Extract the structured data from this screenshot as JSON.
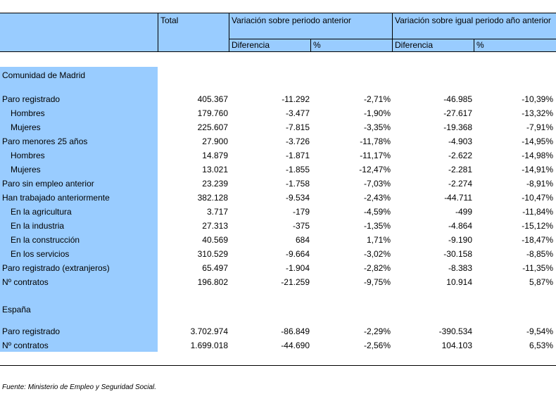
{
  "header": {
    "total": "Total",
    "var_anterior": "Variación sobre periodo anterior",
    "var_igual": "Variación sobre igual periodo año anterior",
    "diferencia": "Diferencia",
    "pct": "%"
  },
  "sections": [
    {
      "title": "Comunidad de Madrid",
      "rows": [
        {
          "label": "Paro registrado",
          "indent": false,
          "total": "405.367",
          "d1": "-11.292",
          "p1": "-2,71%",
          "d2": "-46.985",
          "p2": "-10,39%"
        },
        {
          "label": "Hombres",
          "indent": true,
          "total": "179.760",
          "d1": "-3.477",
          "p1": "-1,90%",
          "d2": "-27.617",
          "p2": "-13,32%"
        },
        {
          "label": "Mujeres",
          "indent": true,
          "total": "225.607",
          "d1": "-7.815",
          "p1": "-3,35%",
          "d2": "-19.368",
          "p2": "-7,91%"
        },
        {
          "label": "Paro menores 25 años",
          "indent": false,
          "total": "27.900",
          "d1": "-3.726",
          "p1": "-11,78%",
          "d2": "-4.903",
          "p2": "-14,95%"
        },
        {
          "label": "Hombres",
          "indent": true,
          "total": "14.879",
          "d1": "-1.871",
          "p1": "-11,17%",
          "d2": "-2.622",
          "p2": "-14,98%"
        },
        {
          "label": "Mujeres",
          "indent": true,
          "total": "13.021",
          "d1": "-1.855",
          "p1": "-12,47%",
          "d2": "-2.281",
          "p2": "-14,91%"
        },
        {
          "label": "Paro sin empleo anterior",
          "indent": false,
          "total": "23.239",
          "d1": "-1.758",
          "p1": "-7,03%",
          "d2": "-2.274",
          "p2": "-8,91%"
        },
        {
          "label": "Han trabajado anteriormente",
          "indent": false,
          "total": "382.128",
          "d1": "-9.534",
          "p1": "-2,43%",
          "d2": "-44.711",
          "p2": "-10,47%"
        },
        {
          "label": "En la agricultura",
          "indent": true,
          "total": "3.717",
          "d1": "-179",
          "p1": "-4,59%",
          "d2": "-499",
          "p2": "-11,84%"
        },
        {
          "label": "En la industria",
          "indent": true,
          "total": "27.313",
          "d1": "-375",
          "p1": "-1,35%",
          "d2": "-4.864",
          "p2": "-15,12%"
        },
        {
          "label": "En la construcción",
          "indent": true,
          "total": "40.569",
          "d1": "684",
          "p1": "1,71%",
          "d2": "-9.190",
          "p2": "-18,47%"
        },
        {
          "label": "En los servicios",
          "indent": true,
          "total": "310.529",
          "d1": "-9.664",
          "p1": "-3,02%",
          "d2": "-30.158",
          "p2": "-8,85%"
        },
        {
          "label": "Paro registrado (extranjeros)",
          "indent": false,
          "total": "65.497",
          "d1": "-1.904",
          "p1": "-2,82%",
          "d2": "-8.383",
          "p2": "-11,35%"
        },
        {
          "label": "Nº contratos",
          "indent": false,
          "total": "196.802",
          "d1": "-21.259",
          "p1": "-9,75%",
          "d2": "10.914",
          "p2": "5,87%"
        }
      ]
    },
    {
      "title": "España",
      "rows": [
        {
          "label": "Paro registrado",
          "indent": false,
          "total": "3.702.974",
          "d1": "-86.849",
          "p1": "-2,29%",
          "d2": "-390.534",
          "p2": "-9,54%"
        },
        {
          "label": "Nº contratos",
          "indent": false,
          "total": "1.699.018",
          "d1": "-44.690",
          "p1": "-2,56%",
          "d2": "104.103",
          "p2": "6,53%"
        }
      ]
    }
  ],
  "footer": "Fuente: Ministerio de Empleo y Seguridad Social."
}
